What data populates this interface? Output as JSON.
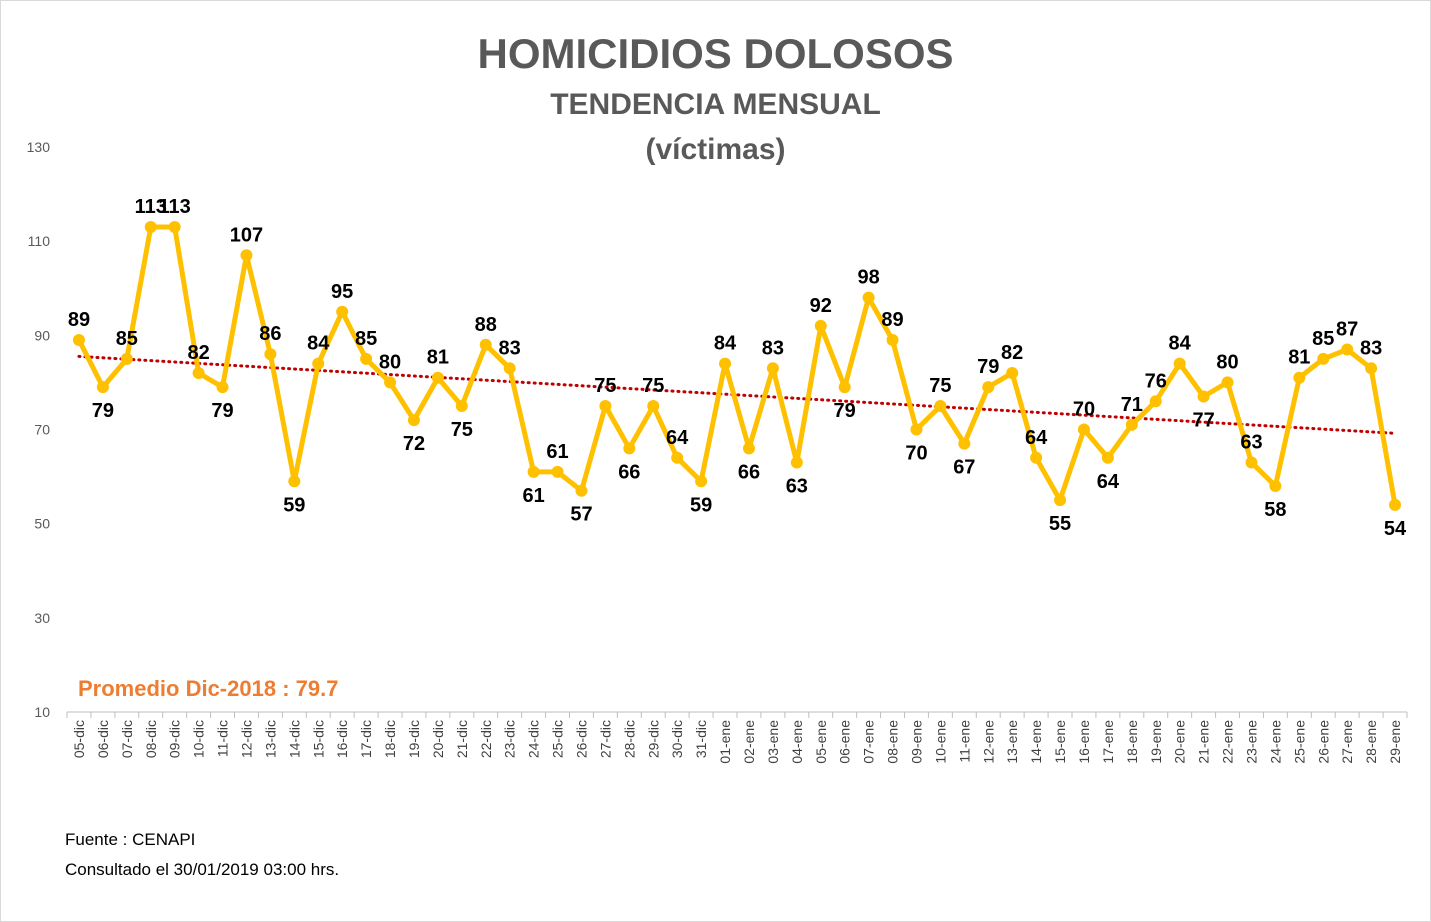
{
  "chart_data": {
    "type": "line",
    "title": "HOMICIDIOS DOLOSOS",
    "subtitle": "TENDENCIA MENSUAL",
    "subtitle2": "(víctimas)",
    "categories": [
      "05-dic",
      "06-dic",
      "07-dic",
      "08-dic",
      "09-dic",
      "10-dic",
      "11-dic",
      "12-dic",
      "13-dic",
      "14-dic",
      "15-dic",
      "16-dic",
      "17-dic",
      "18-dic",
      "19-dic",
      "20-dic",
      "21-dic",
      "22-dic",
      "23-dic",
      "24-dic",
      "25-dic",
      "26-dic",
      "27-dic",
      "28-dic",
      "29-dic",
      "30-dic",
      "31-dic",
      "01-ene",
      "02-ene",
      "03-ene",
      "04-ene",
      "05-ene",
      "06-ene",
      "07-ene",
      "08-ene",
      "09-ene",
      "10-ene",
      "11-ene",
      "12-ene",
      "13-ene",
      "14-ene",
      "15-ene",
      "16-ene",
      "17-ene",
      "18-ene",
      "19-ene",
      "20-ene",
      "21-ene",
      "22-ene",
      "23-ene",
      "24-ene",
      "25-ene",
      "26-ene",
      "27-ene",
      "28-ene",
      "29-ene"
    ],
    "series": [
      {
        "values": [
          89,
          79,
          85,
          113,
          113,
          82,
          79,
          107,
          86,
          59,
          84,
          95,
          85,
          80,
          72,
          81,
          75,
          88,
          83,
          61,
          61,
          57,
          75,
          66,
          75,
          64,
          59,
          84,
          66,
          83,
          63,
          92,
          79,
          98,
          89,
          70,
          75,
          67,
          79,
          82,
          64,
          55,
          70,
          64,
          71,
          76,
          84,
          77,
          80,
          63,
          58,
          81,
          85,
          87,
          83,
          54
        ],
        "color": "#ffc000"
      }
    ],
    "trendline": {
      "type": "linear",
      "color": "#c00000",
      "style": "dotted"
    },
    "ylim": [
      10,
      130
    ],
    "yticks": [
      10,
      30,
      50,
      70,
      90,
      110,
      130
    ],
    "grid": false,
    "legend": "none",
    "average_label": "Promedio Dic-2018 : 79.7",
    "average_color": "#ed7d31"
  },
  "footer": {
    "source": "Fuente : CENAPI",
    "consulted": "Consultado el 30/01/2019  03:00 hrs."
  }
}
